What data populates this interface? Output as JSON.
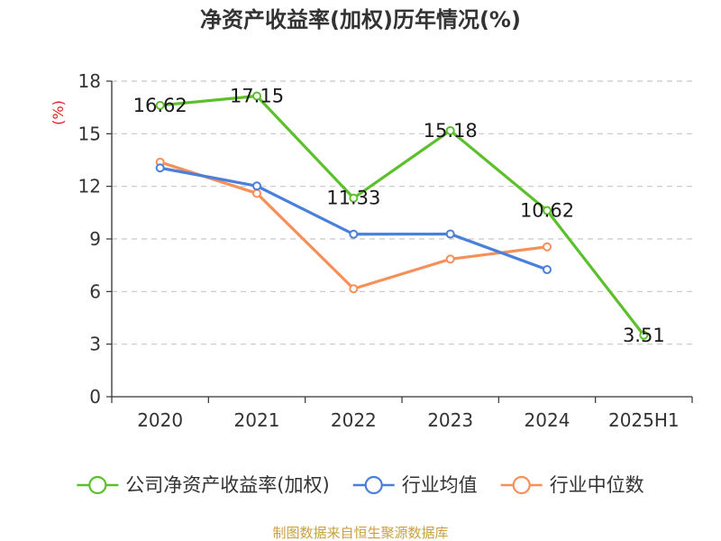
{
  "chart_data": {
    "type": "line",
    "title": "净资产收益率(加权)历年情况(%)",
    "ylabel": "(%)",
    "categories": [
      "2020",
      "2021",
      "2022",
      "2023",
      "2024",
      "2025H1"
    ],
    "ylim": [
      0,
      18
    ],
    "yticks": [
      0,
      3,
      6,
      9,
      12,
      15,
      18
    ],
    "grid": true,
    "legend_position": "bottom",
    "series": [
      {
        "name": "公司净资产收益率(加权)",
        "color": "#5cc02c",
        "values": [
          16.62,
          17.15,
          11.33,
          15.18,
          10.62,
          3.51
        ],
        "labels": [
          "16.62",
          "17.15",
          "11.33",
          "15.18",
          "10.62",
          "3.51"
        ],
        "show_labels": true
      },
      {
        "name": "行业均值",
        "color": "#4a7fdb",
        "values": [
          13.05,
          12.02,
          9.27,
          9.28,
          7.25,
          null
        ],
        "show_labels": false
      },
      {
        "name": "行业中位数",
        "color": "#f5905a",
        "values": [
          13.38,
          11.6,
          6.16,
          7.85,
          8.55,
          null
        ],
        "show_labels": false
      }
    ]
  },
  "source": "制图数据来自恒生聚源数据库"
}
